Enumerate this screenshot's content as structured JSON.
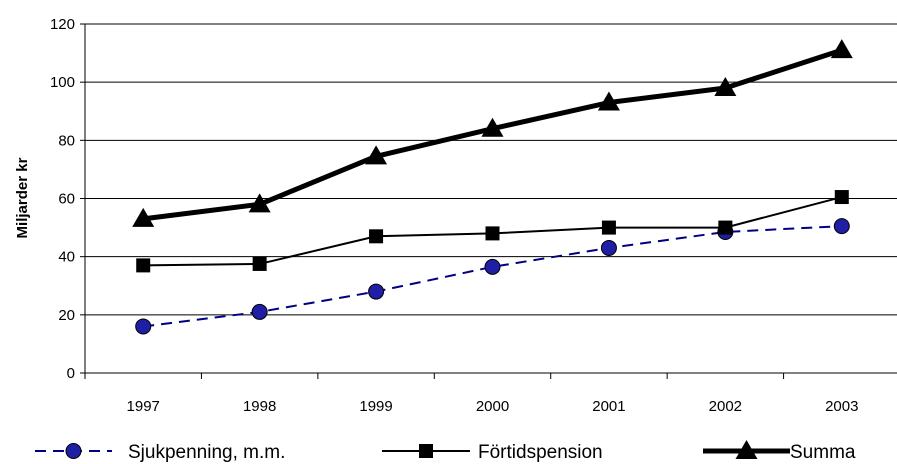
{
  "chart_data": {
    "type": "line",
    "title": "",
    "xlabel": "",
    "ylabel": "Miljarder kr",
    "ylim": [
      0,
      120
    ],
    "yticks": [
      0,
      20,
      40,
      60,
      80,
      100,
      120
    ],
    "grid": true,
    "legend_position": "bottom",
    "categories": [
      "1997",
      "1998",
      "1999",
      "2000",
      "2001",
      "2002",
      "2003"
    ],
    "series": [
      {
        "name": "Sjukpenning, m.m.",
        "values": [
          16,
          21,
          28,
          36.5,
          43,
          48.5,
          50.5
        ],
        "color": "#000080",
        "marker": "circle",
        "marker_fill": "#1f1fa6",
        "line_style": "dashed"
      },
      {
        "name": "Förtidspension",
        "values": [
          37,
          37.5,
          47,
          48,
          50,
          50,
          60.5
        ],
        "color": "#000000",
        "marker": "square",
        "marker_fill": "#000000",
        "line_style": "solid"
      },
      {
        "name": "Summa",
        "values": [
          53,
          58,
          74.5,
          84,
          93,
          98,
          111
        ],
        "color": "#000000",
        "marker": "triangle",
        "marker_fill": "#000000",
        "line_style": "bold"
      }
    ]
  }
}
